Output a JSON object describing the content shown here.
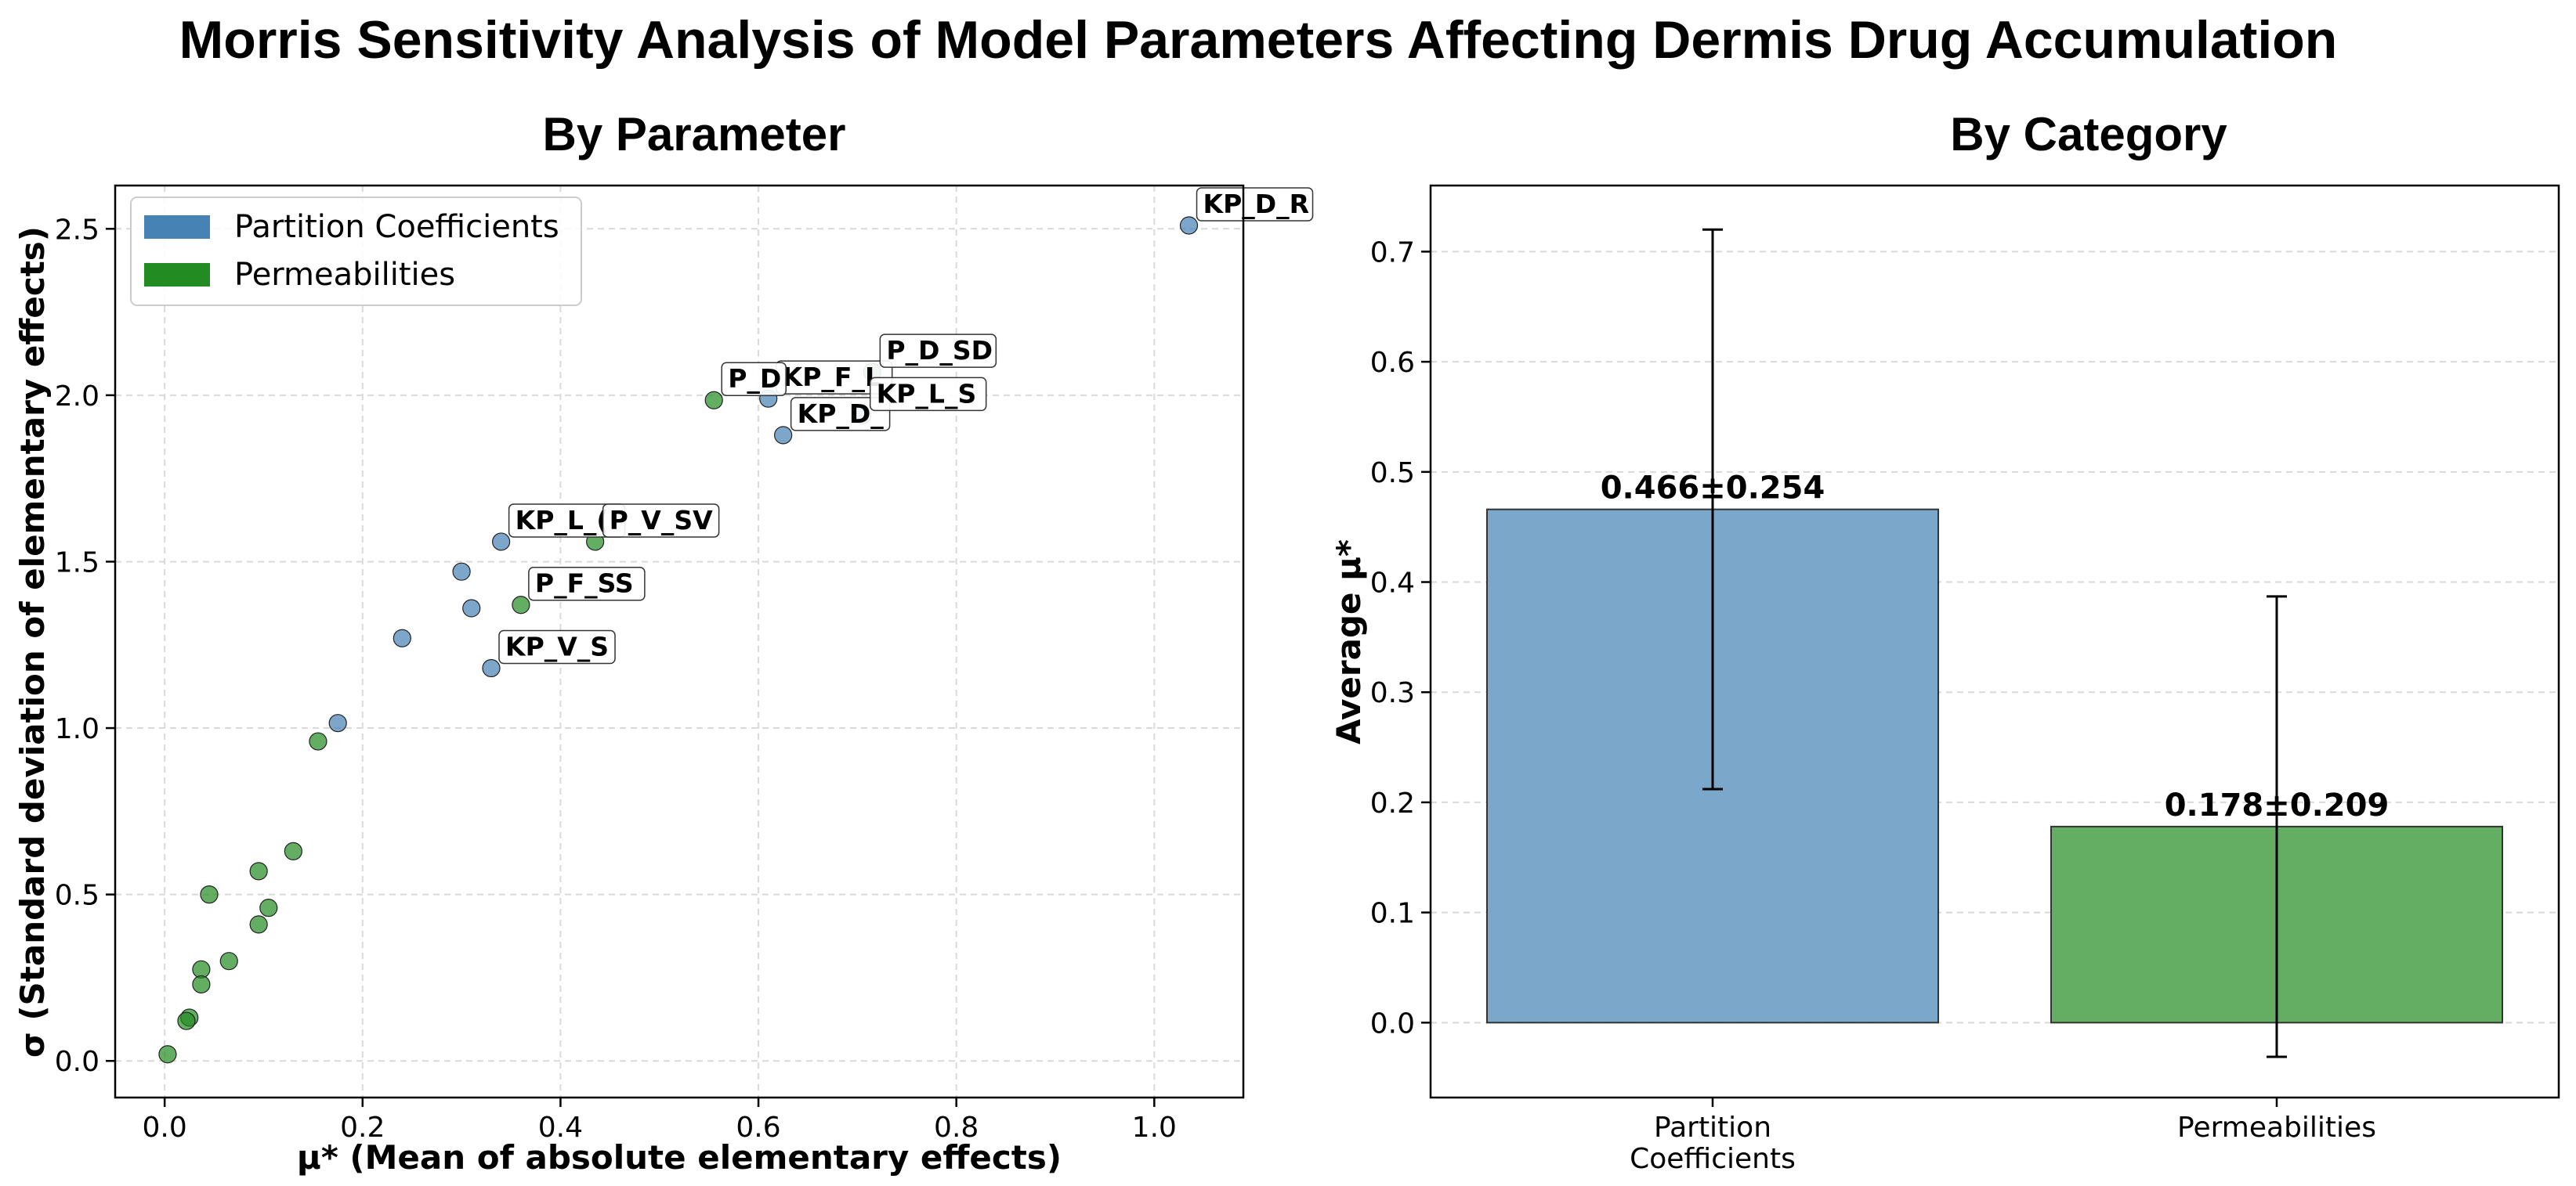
{
  "figure": {
    "title": "Morris Sensitivity Analysis of Model Parameters Affecting Dermis Drug Accumulation"
  },
  "colors": {
    "partition": "#4682b4",
    "permeability": "#228b22",
    "partition_fill": "#7ba7cb",
    "permeability_fill": "#63ae63"
  },
  "chart_data": [
    {
      "type": "scatter",
      "title": "By Parameter",
      "xlabel": "μ* (Mean of absolute elementary effects)",
      "ylabel": "σ (Standard deviation of elementary effects)",
      "xlim": [
        -0.05,
        1.09
      ],
      "ylim": [
        -0.11,
        2.63
      ],
      "xticks": [
        "0.0",
        "0.2",
        "0.4",
        "0.6",
        "0.8",
        "1.0"
      ],
      "yticks": [
        "0.0",
        "0.5",
        "1.0",
        "1.5",
        "2.0",
        "2.5"
      ],
      "grid": true,
      "legend": {
        "position": "top-left",
        "entries": [
          {
            "name": "Partition Coefficients",
            "color_key": "partition"
          },
          {
            "name": "Permeabilities",
            "color_key": "permeability"
          }
        ]
      },
      "series": [
        {
          "name": "Partition Coefficients",
          "color_key": "partition",
          "points": [
            {
              "x": 1.035,
              "y": 2.51,
              "label": "KP_D_R"
            },
            {
              "x": 0.61,
              "y": 1.99,
              "label": "KP_F_L"
            },
            {
              "x": 0.625,
              "y": 1.88,
              "label": "KP_D_"
            },
            {
              "x": 0.705,
              "y": 1.94,
              "label": "KP_L_S"
            },
            {
              "x": 0.34,
              "y": 1.56,
              "label": "KP_L_("
            },
            {
              "x": 0.33,
              "y": 1.18,
              "label": "KP_V_S"
            },
            {
              "x": 0.3,
              "y": 1.47,
              "label": ""
            },
            {
              "x": 0.31,
              "y": 1.36,
              "label": ""
            },
            {
              "x": 0.24,
              "y": 1.27,
              "label": ""
            },
            {
              "x": 0.175,
              "y": 1.015,
              "label": ""
            }
          ]
        },
        {
          "name": "Permeabilities",
          "color_key": "permeability",
          "points": [
            {
              "x": 0.715,
              "y": 2.07,
              "label": "P_D_SD"
            },
            {
              "x": 0.555,
              "y": 1.985,
              "label": "P_D"
            },
            {
              "x": 0.435,
              "y": 1.56,
              "label": "P_V_SV"
            },
            {
              "x": 0.36,
              "y": 1.37,
              "label": "P_F_SS"
            },
            {
              "x": 0.155,
              "y": 0.96,
              "label": ""
            },
            {
              "x": 0.13,
              "y": 0.63,
              "label": ""
            },
            {
              "x": 0.095,
              "y": 0.57,
              "label": ""
            },
            {
              "x": 0.045,
              "y": 0.5,
              "label": ""
            },
            {
              "x": 0.105,
              "y": 0.46,
              "label": ""
            },
            {
              "x": 0.095,
              "y": 0.41,
              "label": ""
            },
            {
              "x": 0.065,
              "y": 0.3,
              "label": ""
            },
            {
              "x": 0.037,
              "y": 0.275,
              "label": ""
            },
            {
              "x": 0.037,
              "y": 0.23,
              "label": ""
            },
            {
              "x": 0.025,
              "y": 0.13,
              "label": ""
            },
            {
              "x": 0.022,
              "y": 0.12,
              "label": ""
            },
            {
              "x": 0.003,
              "y": 0.02,
              "label": ""
            }
          ]
        }
      ]
    },
    {
      "type": "bar",
      "title": "By Category",
      "xlabel": "",
      "ylabel": "Average μ*",
      "ylim": [
        -0.068,
        0.76
      ],
      "yticks": [
        "0.0",
        "0.1",
        "0.2",
        "0.3",
        "0.4",
        "0.5",
        "0.6",
        "0.7"
      ],
      "grid": true,
      "categories": [
        {
          "name": "Partition Coefficients",
          "tick_lines": [
            "Partition",
            "Coefficients"
          ],
          "color_key": "partition_fill",
          "value": 0.466,
          "error": 0.254,
          "label": "0.466±0.254"
        },
        {
          "name": "Permeabilities",
          "tick_lines": [
            "Permeabilities"
          ],
          "color_key": "permeability_fill",
          "value": 0.178,
          "error": 0.209,
          "label": "0.178±0.209"
        }
      ]
    }
  ]
}
